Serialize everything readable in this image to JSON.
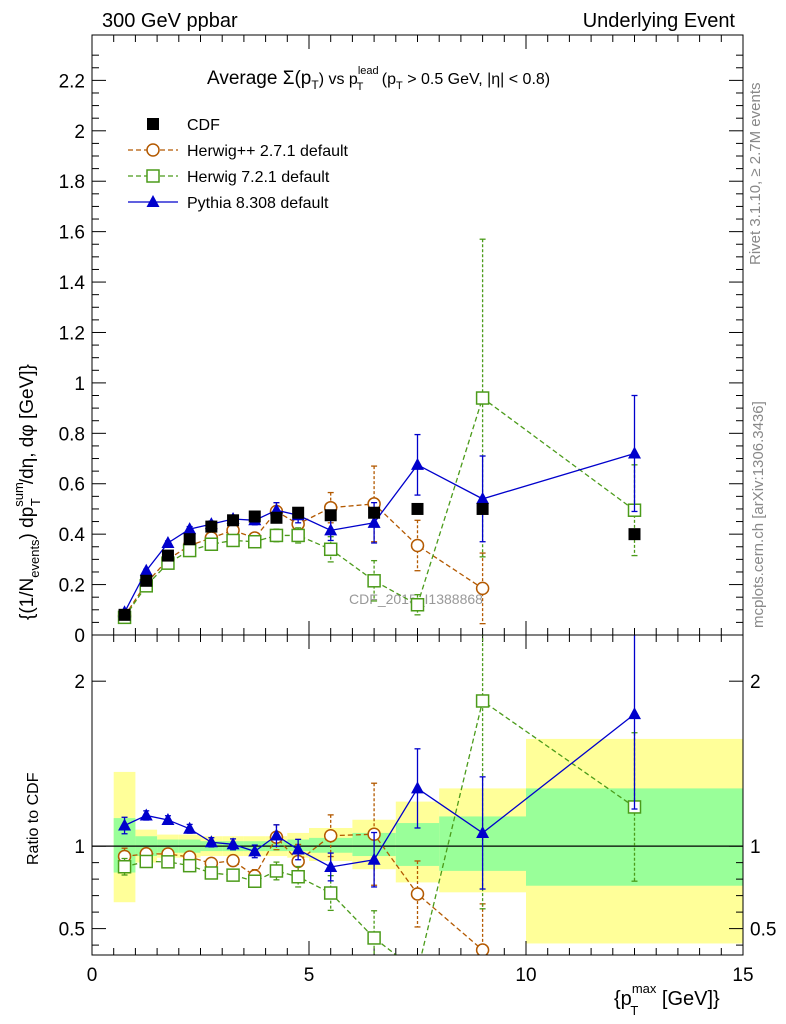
{
  "header": {
    "left": "300 GeV ppbar",
    "right": "Underlying Event"
  },
  "side": {
    "rivet": "Rivet 3.1.10, ≥ 2.7M events",
    "mcplots": "mcplots.cern.ch [arXiv:1306.3436]"
  },
  "chart_data": {
    "type": "scatter",
    "title_parts": {
      "a": "Average ",
      "b": "Σ(p",
      "b_sub": "T",
      "c": ") vs p",
      "c_sup": "lead",
      "c_sub": "T",
      "d": " (p",
      "d_sub": "T",
      "e": " > 0.5 GeV, |η| < 0.8)"
    },
    "watermark": "CDF_2015_I1388868",
    "xlabel": {
      "main": "{p",
      "sup": "max",
      "sub": "T",
      "tail": " [GeV]}"
    },
    "ylabel": {
      "p1": "{(1/N",
      "p1_sub": "events",
      "p2": ") dp",
      "p2_sup": "sum",
      "p2_sub": "T",
      "p3": "/dη, dφ [GeV]}"
    },
    "ratio_ylabel": "Ratio to CDF",
    "xlim": [
      0,
      15
    ],
    "ylim": [
      0,
      2.38
    ],
    "ratio_ylim": [
      0.34,
      2.28
    ],
    "x_ticks": [
      "0",
      "5",
      "10",
      "15"
    ],
    "y_ticks": [
      "0",
      "0.2",
      "0.4",
      "0.6",
      "0.8",
      "1",
      "1.2",
      "1.4",
      "1.6",
      "1.8",
      "2",
      "2.2"
    ],
    "ratio_y_ticks": [
      "0.5",
      "1",
      "2"
    ],
    "legend_position": "top-left",
    "data": {
      "name": "CDF",
      "x": [
        0.75,
        1.25,
        1.75,
        2.25,
        2.75,
        3.25,
        3.75,
        4.25,
        4.75,
        5.5,
        6.5,
        7.5,
        9,
        12.5
      ],
      "y": [
        0.08,
        0.215,
        0.315,
        0.38,
        0.43,
        0.455,
        0.47,
        0.465,
        0.485,
        0.475,
        0.485,
        0.5,
        0.5,
        0.4
      ]
    },
    "series": [
      {
        "name": "Herwig++ 2.7.1 default",
        "color": "#b35900",
        "marker": "circle",
        "dashed": true,
        "x": [
          0.75,
          1.25,
          1.75,
          2.25,
          2.75,
          3.25,
          3.75,
          4.25,
          4.75,
          5.5,
          6.5,
          7.5,
          9
        ],
        "y": [
          0.075,
          0.205,
          0.3,
          0.355,
          0.385,
          0.415,
          0.385,
          0.49,
          0.44,
          0.505,
          0.52,
          0.355,
          0.185
        ],
        "err": [
          0.004,
          0.006,
          0.008,
          0.01,
          0.012,
          0.015,
          0.018,
          0.035,
          0.05,
          0.06,
          0.15,
          0.1,
          0.14
        ]
      },
      {
        "name": "Herwig 7.2.1 default",
        "color": "#4b9b1a",
        "marker": "square",
        "dashed": true,
        "x": [
          0.75,
          1.25,
          1.75,
          2.25,
          2.75,
          3.25,
          3.75,
          4.25,
          4.75,
          5.5,
          6.5,
          7.5,
          9,
          12.5
        ],
        "y": [
          0.07,
          0.195,
          0.285,
          0.335,
          0.36,
          0.375,
          0.37,
          0.395,
          0.395,
          0.34,
          0.215,
          0.12,
          0.94,
          0.495
        ],
        "err": [
          0.004,
          0.006,
          0.008,
          0.01,
          0.012,
          0.014,
          0.017,
          0.025,
          0.03,
          0.05,
          0.08,
          0.04,
          0.63,
          0.18
        ]
      },
      {
        "name": "Pythia 8.308 default",
        "color": "#0000cc",
        "marker": "triangle",
        "dashed": false,
        "x": [
          0.75,
          1.25,
          1.75,
          2.25,
          2.75,
          3.25,
          3.75,
          4.25,
          4.75,
          5.5,
          6.5,
          7.5,
          9,
          12.5
        ],
        "y": [
          0.09,
          0.255,
          0.365,
          0.42,
          0.44,
          0.46,
          0.455,
          0.495,
          0.475,
          0.415,
          0.445,
          0.675,
          0.54,
          0.72
        ],
        "err": [
          0.004,
          0.006,
          0.008,
          0.01,
          0.012,
          0.015,
          0.018,
          0.03,
          0.03,
          0.04,
          0.08,
          0.12,
          0.17,
          0.23
        ]
      }
    ],
    "ratio_bands": {
      "x_edges": [
        0.5,
        1.0,
        1.5,
        2.0,
        2.5,
        3.0,
        3.5,
        4.0,
        4.5,
        5.0,
        6.0,
        7.0,
        8.0,
        10.0,
        15.0
      ],
      "stat_lo": [
        0.84,
        0.94,
        0.96,
        0.96,
        0.97,
        0.97,
        0.97,
        0.97,
        0.97,
        0.96,
        0.94,
        0.88,
        0.85,
        0.76
      ],
      "stat_hi": [
        1.17,
        1.06,
        1.04,
        1.04,
        1.03,
        1.03,
        1.03,
        1.03,
        1.04,
        1.05,
        1.08,
        1.14,
        1.18,
        1.35
      ],
      "tot_lo": [
        0.66,
        0.9,
        0.93,
        0.93,
        0.94,
        0.94,
        0.94,
        0.94,
        0.93,
        0.91,
        0.86,
        0.78,
        0.72,
        0.41
      ],
      "tot_hi": [
        1.45,
        1.1,
        1.07,
        1.07,
        1.06,
        1.06,
        1.06,
        1.06,
        1.08,
        1.11,
        1.16,
        1.27,
        1.35,
        1.65
      ]
    }
  }
}
